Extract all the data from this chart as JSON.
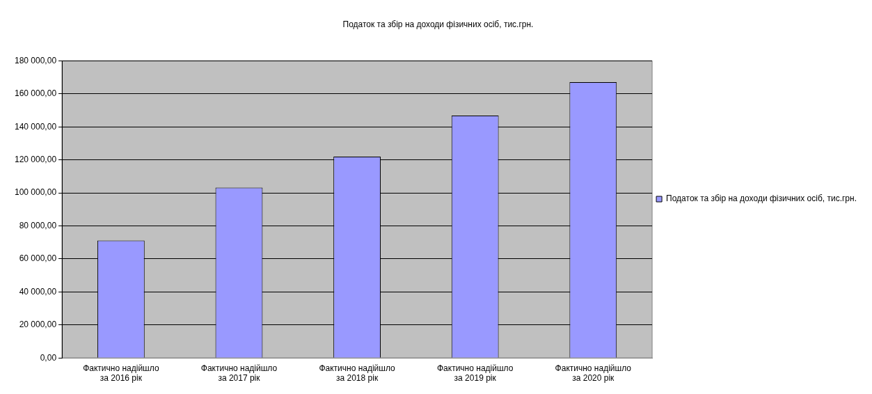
{
  "chart_data": {
    "type": "bar",
    "title": "Податок та збір на доходи фізичних осіб, тис.грн.",
    "categories": [
      "Фактично надійшло за 2016 рік",
      "Фактично надійшло за 2017 рік",
      "Фактично надійшло за 2018 рік",
      "Фактично надійшло за 2019 рік",
      "Фактично надійшло за 2020 рік"
    ],
    "series": [
      {
        "name": "Податок та збір на доходи фізичних осіб, тис.грн.",
        "color": "#9999ff",
        "values": [
          71200,
          103200,
          122000,
          146900,
          167100
        ]
      }
    ],
    "ylim": [
      0,
      180000
    ],
    "yticks": [
      {
        "value": 0,
        "label": "0,00"
      },
      {
        "value": 20000,
        "label": "20 000,00"
      },
      {
        "value": 40000,
        "label": "40 000,00"
      },
      {
        "value": 60000,
        "label": "60 000,00"
      },
      {
        "value": 80000,
        "label": "80 000,00"
      },
      {
        "value": 100000,
        "label": "100 000,00"
      },
      {
        "value": 120000,
        "label": "120 000,00"
      },
      {
        "value": 140000,
        "label": "140 000,00"
      },
      {
        "value": 160000,
        "label": "160 000,00"
      },
      {
        "value": 180000,
        "label": "180 000,00"
      }
    ],
    "grid": "y",
    "legend": "right"
  }
}
